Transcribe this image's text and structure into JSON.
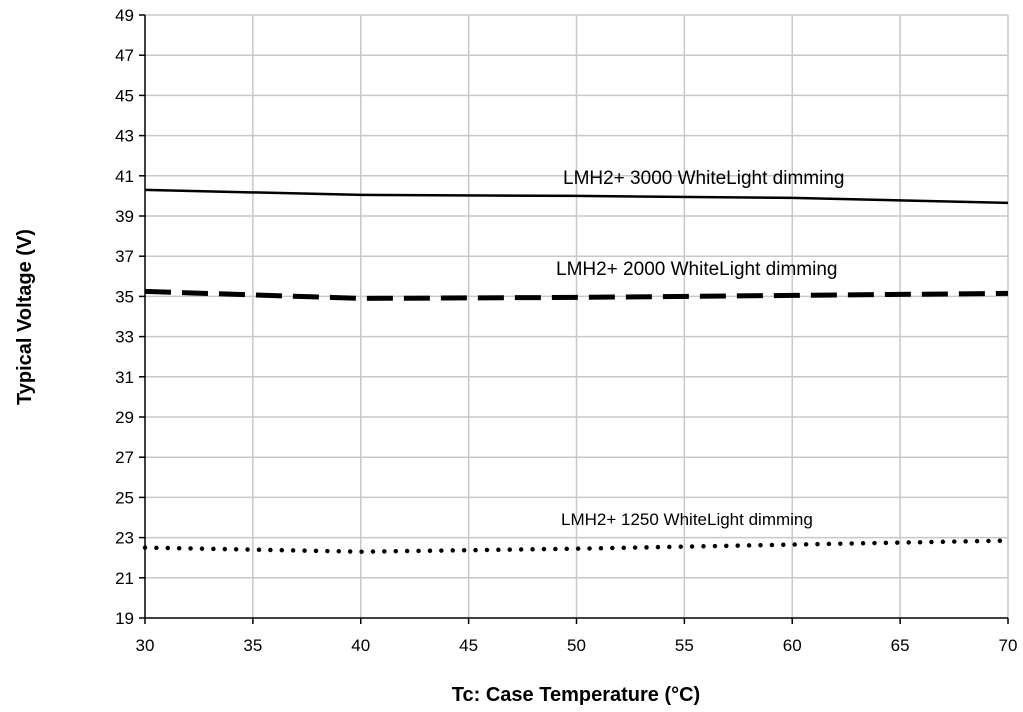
{
  "chart_data": {
    "type": "line",
    "title": "",
    "xlabel": "Tc: Case Temperature (°C)",
    "ylabel": "Typical Voltage (V)",
    "xlim": [
      30,
      70
    ],
    "ylim": [
      19,
      49
    ],
    "x_ticks": [
      30,
      35,
      40,
      45,
      50,
      55,
      60,
      65,
      70
    ],
    "y_ticks": [
      19,
      21,
      23,
      25,
      27,
      29,
      31,
      33,
      35,
      37,
      39,
      41,
      43,
      45,
      47,
      49
    ],
    "grid": true,
    "legend": "none",
    "series": [
      {
        "name": "LMH2+ 3000 WhiteLight dimming",
        "style": "solid",
        "x": [
          30,
          40,
          50,
          60,
          70
        ],
        "y": [
          40.3,
          40.05,
          40.0,
          39.9,
          39.65
        ]
      },
      {
        "name": "LMH2+ 2000 WhiteLight dimming",
        "style": "dashed",
        "x": [
          30,
          40,
          50,
          60,
          70
        ],
        "y": [
          35.25,
          34.9,
          34.95,
          35.05,
          35.15
        ]
      },
      {
        "name": "LMH2+ 1250 WhiteLight dimming",
        "style": "dotted",
        "x": [
          30,
          40,
          50,
          60,
          70
        ],
        "y": [
          22.5,
          22.3,
          22.45,
          22.65,
          22.85
        ]
      }
    ]
  }
}
